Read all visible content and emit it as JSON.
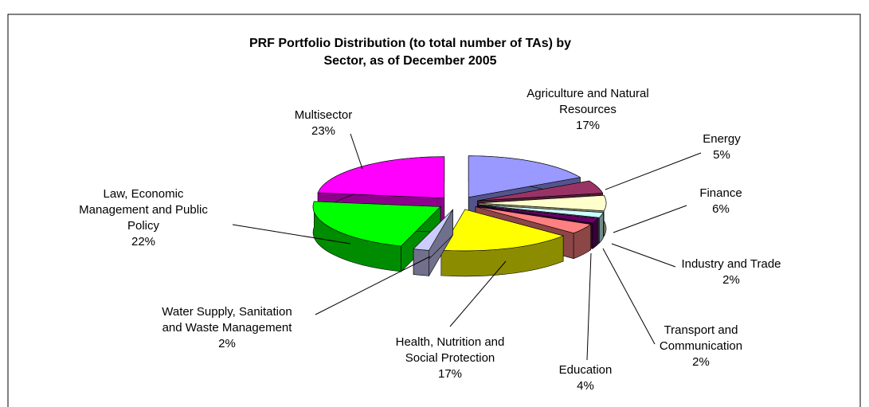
{
  "chart_data": {
    "type": "pie3d",
    "title": "PRF Portfolio Distribution (to total number of TAs) by Sector, as of December 2005",
    "categories": [
      "Agriculture and Natural Resources",
      "Energy",
      "Finance",
      "Industry and Trade",
      "Transport and Communication",
      "Education",
      "Health, Nutrition and Social Protection",
      "Water Supply, Sanitation and Waste Management",
      "Law, Economic Management and Public Policy",
      "Multisector"
    ],
    "values": [
      17,
      5,
      6,
      2,
      2,
      4,
      17,
      2,
      22,
      23
    ],
    "value_labels": [
      "17%",
      "5%",
      "6%",
      "2%",
      "2%",
      "4%",
      "17%",
      "2%",
      "22%",
      "23%"
    ],
    "colors": [
      "#9999ff",
      "#993366",
      "#ffffcc",
      "#ccffff",
      "#660066",
      "#ff8080",
      "#ffff00",
      "#ccccff",
      "#00ff00",
      "#ff00ff"
    ]
  }
}
